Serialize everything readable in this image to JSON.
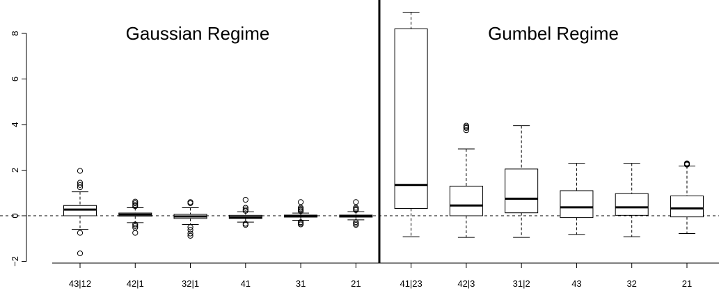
{
  "chart_data": {
    "type": "boxplot",
    "title": "",
    "xlabel": "",
    "ylabel": "",
    "ylim": [
      -2,
      9
    ],
    "yticks": [
      "8",
      "6",
      "4",
      "2",
      "0",
      "−2"
    ],
    "ytick_values": [
      8,
      6,
      4,
      2,
      0,
      -2
    ],
    "grid": false,
    "reference_line": {
      "y": 0,
      "style": "dashed"
    },
    "panels": [
      {
        "title": "Gaussian Regime"
      },
      {
        "title": "Gumbel Regime"
      }
    ],
    "boxes": [
      {
        "label": "43|12",
        "panel": 0,
        "whisker_low": -0.6,
        "q1": 0.0,
        "median": 0.27,
        "q3": 0.45,
        "whisker_high": 1.05,
        "outliers": [
          1.97,
          1.45,
          1.35,
          1.25,
          -0.75,
          -1.65
        ]
      },
      {
        "label": "42|1",
        "panel": 0,
        "whisker_low": -0.3,
        "q1": -0.02,
        "median": 0.05,
        "q3": 0.12,
        "whisker_high": 0.35,
        "outliers": [
          0.62,
          0.55,
          0.48,
          0.42,
          -0.38,
          -0.45,
          -0.52,
          -0.75
        ]
      },
      {
        "label": "32|1",
        "panel": 0,
        "whisker_low": -0.38,
        "q1": -0.12,
        "median": -0.03,
        "q3": 0.06,
        "whisker_high": 0.35,
        "outliers": [
          0.6,
          0.55,
          -0.5,
          -0.62,
          -0.78,
          -0.88
        ]
      },
      {
        "label": "41",
        "panel": 0,
        "whisker_low": -0.28,
        "q1": -0.12,
        "median": -0.06,
        "q3": 0.02,
        "whisker_high": 0.17,
        "outliers": [
          0.7,
          0.35,
          0.28,
          0.22,
          -0.35,
          -0.4
        ]
      },
      {
        "label": "31",
        "panel": 0,
        "whisker_low": -0.2,
        "q1": -0.06,
        "median": -0.02,
        "q3": 0.03,
        "whisker_high": 0.12,
        "outliers": [
          0.6,
          0.35,
          0.3,
          0.25,
          0.2,
          -0.28,
          -0.33,
          -0.38
        ]
      },
      {
        "label": "21",
        "panel": 0,
        "whisker_low": -0.18,
        "q1": -0.06,
        "median": -0.02,
        "q3": 0.03,
        "whisker_high": 0.18,
        "outliers": [
          0.6,
          0.35,
          0.3,
          0.25,
          -0.28,
          -0.35,
          -0.4
        ]
      },
      {
        "label": "41|23",
        "panel": 1,
        "whisker_low": -0.92,
        "q1": 0.32,
        "median": 1.35,
        "q3": 8.2,
        "whisker_high": 8.93,
        "outliers": []
      },
      {
        "label": "42|3",
        "panel": 1,
        "whisker_low": -0.95,
        "q1": 0.0,
        "median": 0.45,
        "q3": 1.3,
        "whisker_high": 2.93,
        "outliers": [
          3.95,
          3.9,
          3.85,
          3.75
        ]
      },
      {
        "label": "31|2",
        "panel": 1,
        "whisker_low": -0.95,
        "q1": 0.13,
        "median": 0.75,
        "q3": 2.05,
        "whisker_high": 3.95,
        "outliers": []
      },
      {
        "label": "43",
        "panel": 1,
        "whisker_low": -0.82,
        "q1": -0.08,
        "median": 0.37,
        "q3": 1.1,
        "whisker_high": 2.3,
        "outliers": []
      },
      {
        "label": "32",
        "panel": 1,
        "whisker_low": -0.92,
        "q1": 0.02,
        "median": 0.37,
        "q3": 0.97,
        "whisker_high": 2.3,
        "outliers": []
      },
      {
        "label": "21",
        "panel": 1,
        "whisker_low": -0.78,
        "q1": -0.05,
        "median": 0.32,
        "q3": 0.87,
        "whisker_high": 2.18,
        "outliers": [
          2.3,
          2.27,
          2.24
        ]
      }
    ]
  }
}
